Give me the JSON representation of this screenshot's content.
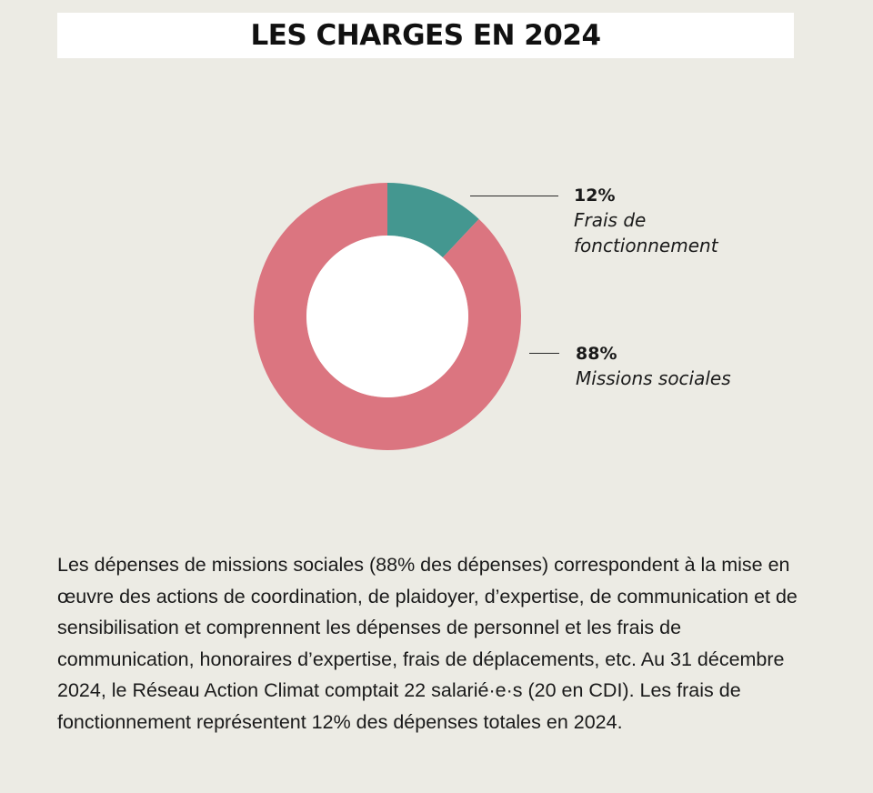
{
  "title": "LES CHARGES EN 2024",
  "chart_data": {
    "type": "donut",
    "slices": [
      {
        "label": "Frais de fonctionnement",
        "value": 12,
        "value_label": "12%",
        "label_lines": [
          "Frais de",
          "fonctionnement"
        ],
        "color": "#449790"
      },
      {
        "label": "Missions sociales",
        "value": 88,
        "value_label": "88%",
        "label_lines": [
          "Missions sociales"
        ],
        "color": "#db7580"
      }
    ]
  },
  "description": "Les dépenses de missions sociales (88% des dépenses) correspondent à la mise en œuvre des actions de coordination, de plaidoyer, d’expertise, de communication et de sensibilisation et comprennent les dépenses de personnel et les frais de communication, honoraires d’expertise, frais de déplacements, etc. Au 31 décembre 2024, le Réseau Action Climat comptait 22 salarié·e·s (20 en CDI). Les frais de fonctionnement représentent 12% des dépenses totales en 2024."
}
